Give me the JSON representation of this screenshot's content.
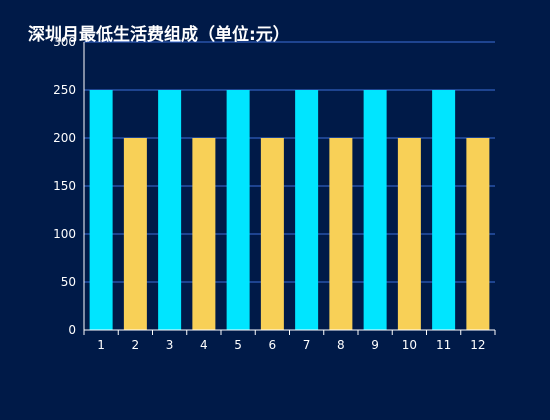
{
  "chart_data": {
    "type": "bar",
    "title": "深圳月最低生活费组成（单位:元）",
    "xlabel": "",
    "ylabel": "",
    "categories": [
      "1",
      "2",
      "3",
      "4",
      "5",
      "6",
      "7",
      "8",
      "9",
      "10",
      "11",
      "12"
    ],
    "values": [
      250,
      200,
      250,
      200,
      250,
      200,
      250,
      200,
      250,
      200,
      250,
      200
    ],
    "ylim": [
      0,
      300
    ],
    "yticks": [
      "0",
      "50",
      "100",
      "150",
      "200",
      "250",
      "300"
    ],
    "grid": true,
    "legend": "none",
    "colors": {
      "background": "#001a48",
      "bar_odd": "#00e5ff",
      "bar_even": "#f8d057",
      "grid": "#3d6fd8",
      "axis": "#ffffff",
      "text": "#ffffff"
    }
  }
}
